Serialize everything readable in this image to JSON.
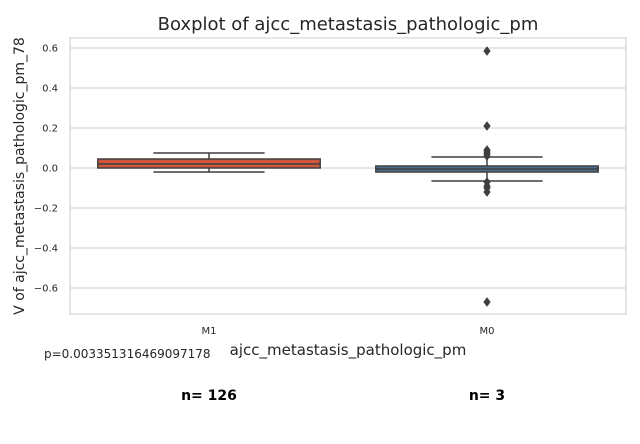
{
  "chart_data": {
    "type": "box",
    "title": "Boxplot of ajcc_metastasis_pathologic_pm",
    "xlabel": "ajcc_metastasis_pathologic_pm",
    "ylabel": "V of ajcc_metastasis_pathologic_pm_78",
    "ylim": [
      -0.73,
      0.65
    ],
    "yticks": [
      -0.6,
      -0.4,
      -0.2,
      0.0,
      0.2,
      0.4,
      0.6
    ],
    "ytick_labels": [
      "−0.6",
      "−0.4",
      "−0.2",
      "0.0",
      "0.2",
      "0.4",
      "0.6"
    ],
    "grid": true,
    "categories": [
      "M1",
      "M0"
    ],
    "boxes": [
      {
        "category": "M1",
        "color": "#d0573d",
        "whisker_low": -0.02,
        "q1": 0.0,
        "median": 0.02,
        "q3": 0.045,
        "whisker_high": 0.075,
        "outliers": []
      },
      {
        "category": "M0",
        "color": "#4a6e8f",
        "whisker_low": -0.065,
        "q1": -0.02,
        "median": -0.005,
        "q3": 0.01,
        "whisker_high": 0.055,
        "outliers": [
          0.585,
          0.21,
          0.09,
          0.08,
          0.07,
          0.06,
          -0.07,
          -0.09,
          -0.1,
          -0.12,
          -0.67
        ]
      }
    ]
  },
  "annotations": {
    "pvalue": "p=0.003351316469097178",
    "counts": [
      "n= 126",
      "n= 3"
    ]
  }
}
